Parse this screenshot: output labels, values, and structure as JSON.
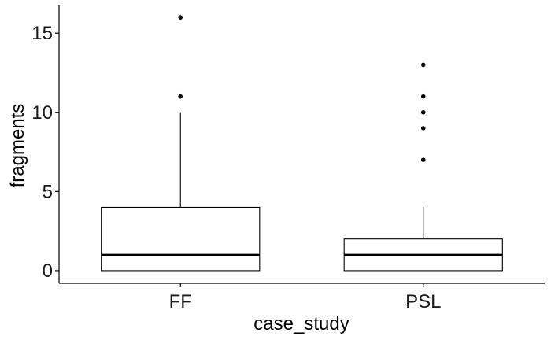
{
  "chart_data": {
    "type": "boxplot",
    "xlabel": "case_study",
    "ylabel": "fragments",
    "categories": [
      "FF",
      "PSL"
    ],
    "ylim": [
      -0.8,
      16.8
    ],
    "y_ticks": [
      0,
      5,
      10,
      15
    ],
    "grid": false,
    "legend": "none",
    "boxes": [
      {
        "category": "FF",
        "lower_whisker": 0,
        "q1": 0,
        "median": 1,
        "q3": 4,
        "upper_whisker": 10,
        "outliers": [
          11,
          16
        ]
      },
      {
        "category": "PSL",
        "lower_whisker": 0,
        "q1": 0,
        "median": 1,
        "q3": 2,
        "upper_whisker": 4,
        "outliers": [
          7,
          9,
          10,
          11,
          13
        ]
      }
    ]
  }
}
